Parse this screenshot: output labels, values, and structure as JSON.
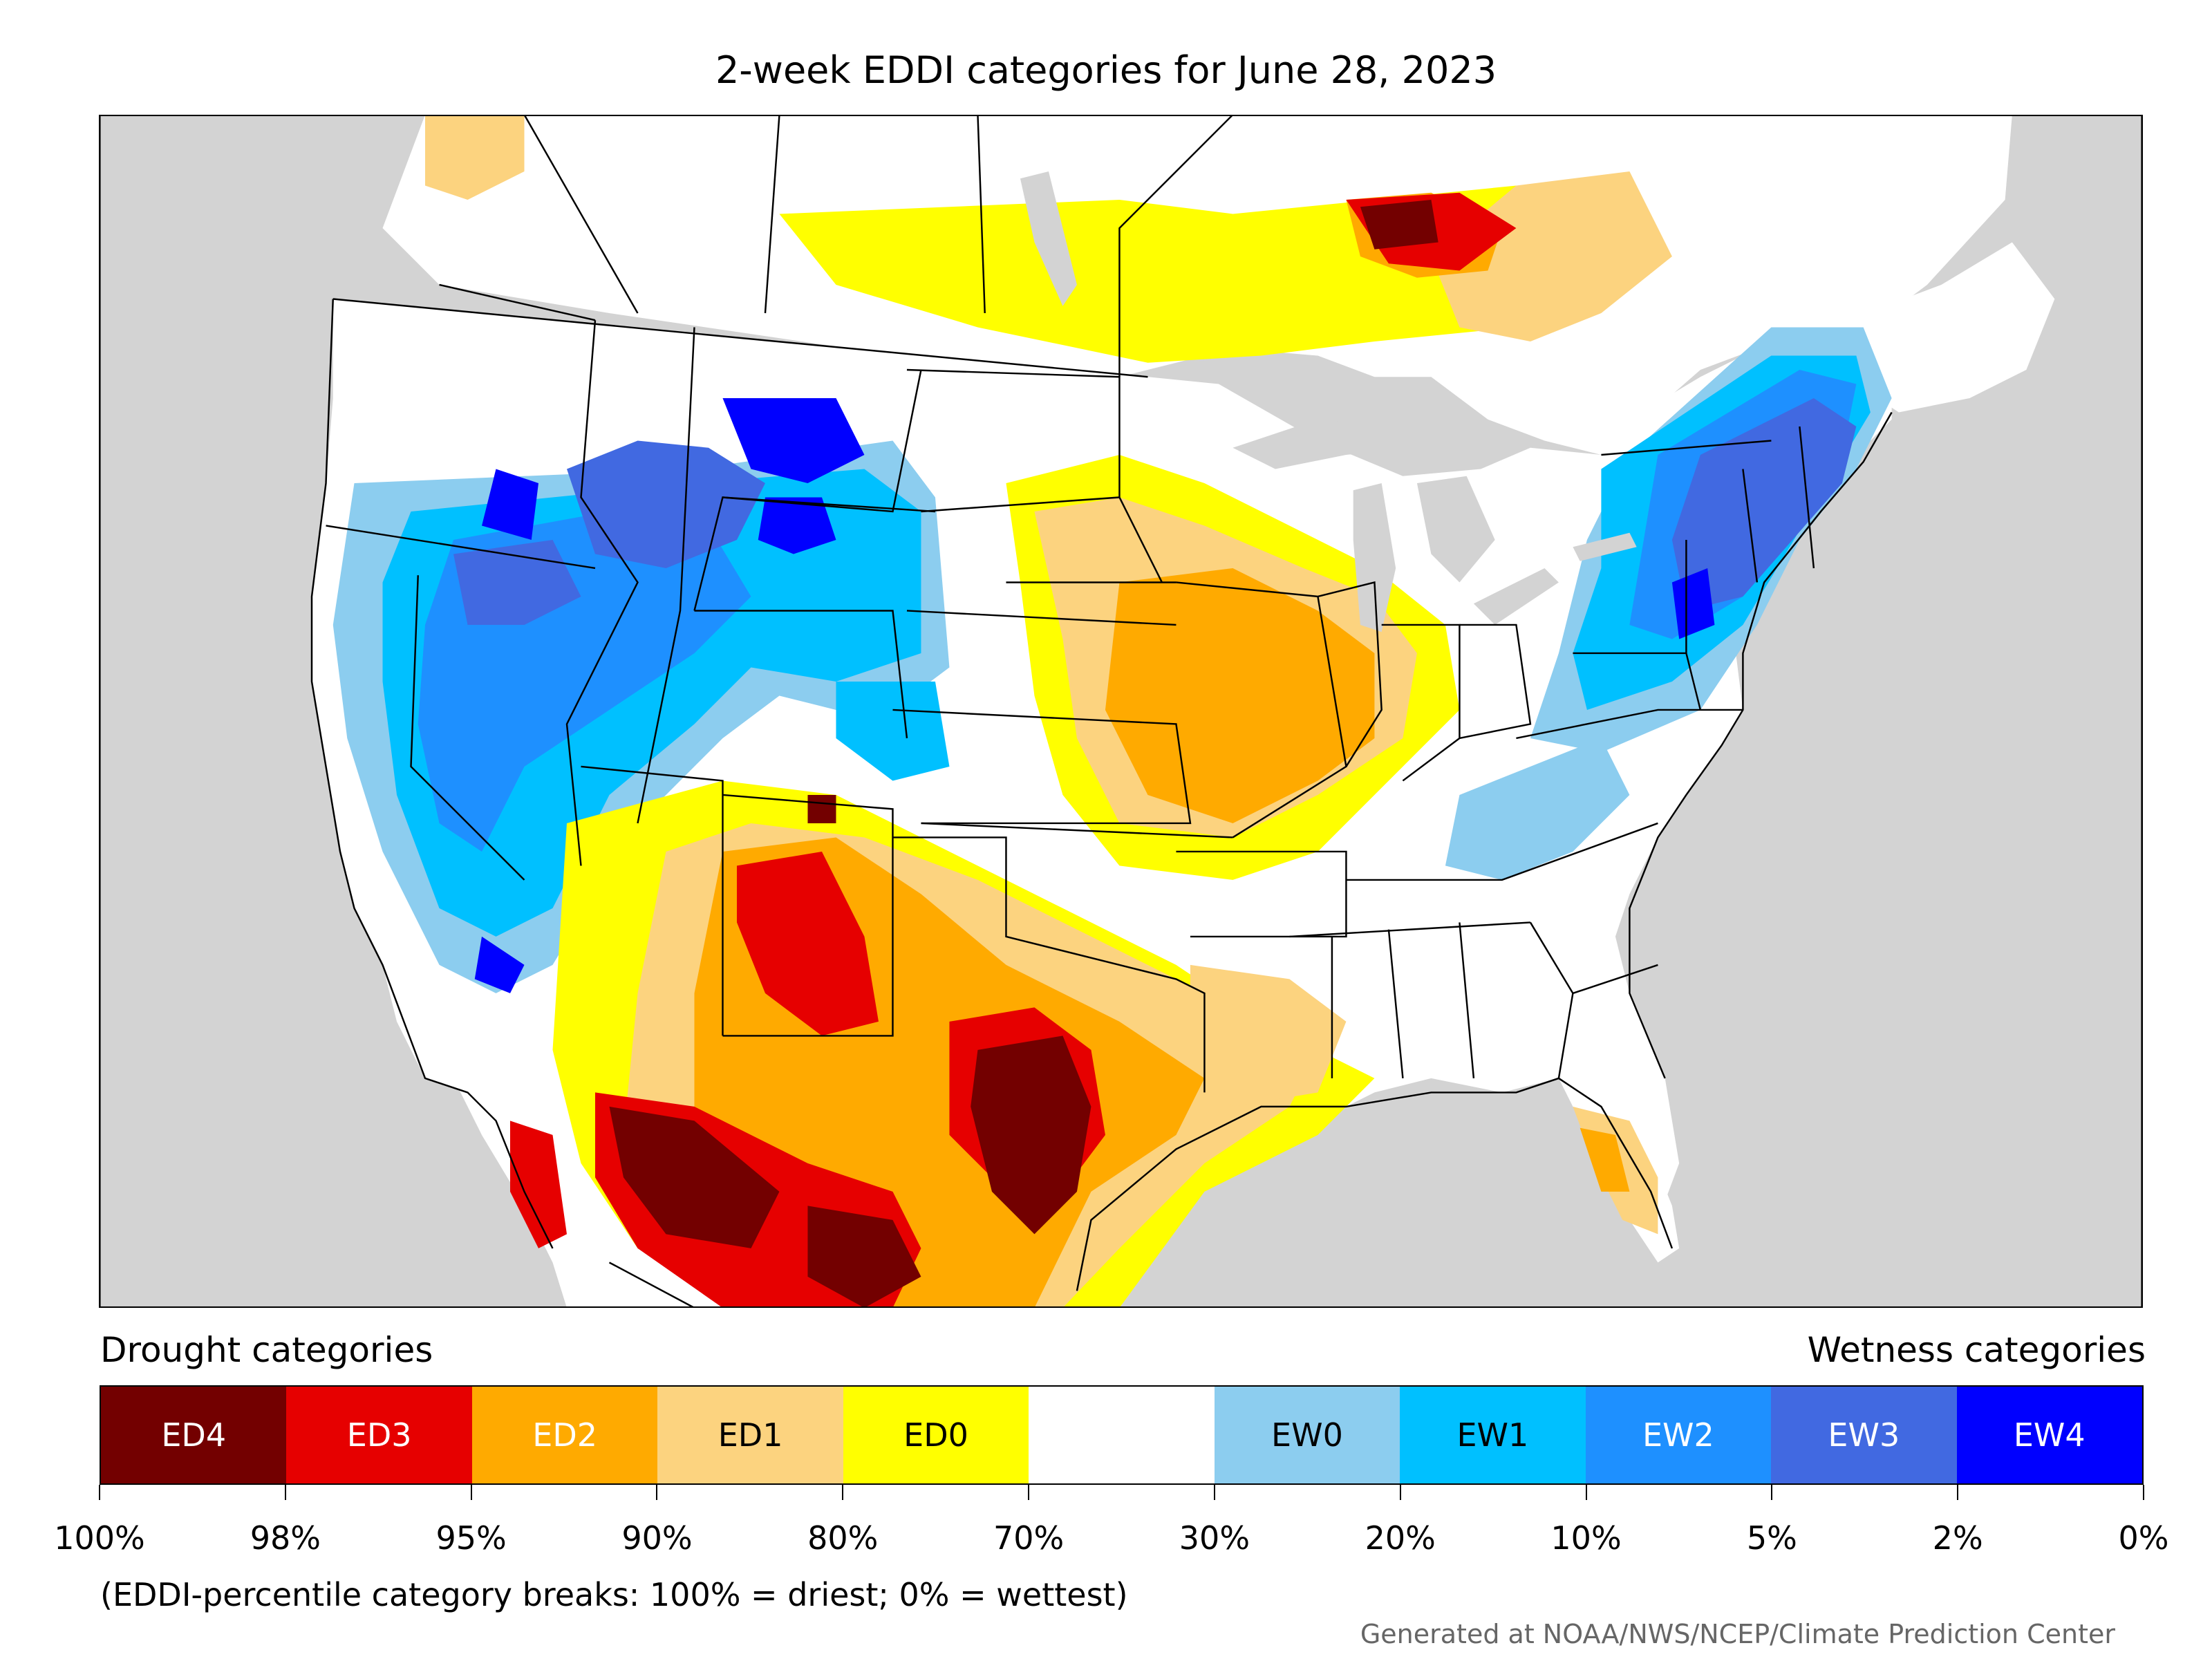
{
  "title": "2-week EDDI categories for June 28, 2023",
  "colors": {
    "ocean_land_outside": "#d3d3d3",
    "ED4": "#730000",
    "ED3": "#e60000",
    "ED2": "#ffaa00",
    "ED1": "#fcd37f",
    "ED0": "#ffff00",
    "neutral": "#ffffff",
    "EW0": "#8ccdef",
    "EW1": "#00c0ff",
    "EW2": "#1e90ff",
    "EW3": "#4169e1",
    "EW4": "#0000ff"
  },
  "legend": {
    "drought_title": "Drought categories",
    "wetness_title": "Wetness categories",
    "categories": [
      {
        "label": "ED4",
        "color": "#730000",
        "text_color": "#ffffff"
      },
      {
        "label": "ED3",
        "color": "#e60000",
        "text_color": "#ffffff"
      },
      {
        "label": "ED2",
        "color": "#ffaa00",
        "text_color": "#ffffff"
      },
      {
        "label": "ED1",
        "color": "#fcd37f",
        "text_color": "#000000"
      },
      {
        "label": "ED0",
        "color": "#ffff00",
        "text_color": "#000000"
      },
      {
        "label": "",
        "color": "#ffffff",
        "text_color": "#000000"
      },
      {
        "label": "EW0",
        "color": "#8ccdef",
        "text_color": "#000000"
      },
      {
        "label": "EW1",
        "color": "#00c0ff",
        "text_color": "#000000"
      },
      {
        "label": "EW2",
        "color": "#1e90ff",
        "text_color": "#ffffff"
      },
      {
        "label": "EW3",
        "color": "#4169e1",
        "text_color": "#ffffff"
      },
      {
        "label": "EW4",
        "color": "#0000ff",
        "text_color": "#ffffff"
      }
    ],
    "ticks": [
      "100%",
      "98%",
      "95%",
      "90%",
      "80%",
      "70%",
      "30%",
      "20%",
      "10%",
      "5%",
      "2%",
      "0%"
    ]
  },
  "note": "(EDDI-percentile category breaks: 100% = driest; 0% = wettest)",
  "credit": "Generated at NOAA/NWS/NCEP/Climate Prediction Center"
}
